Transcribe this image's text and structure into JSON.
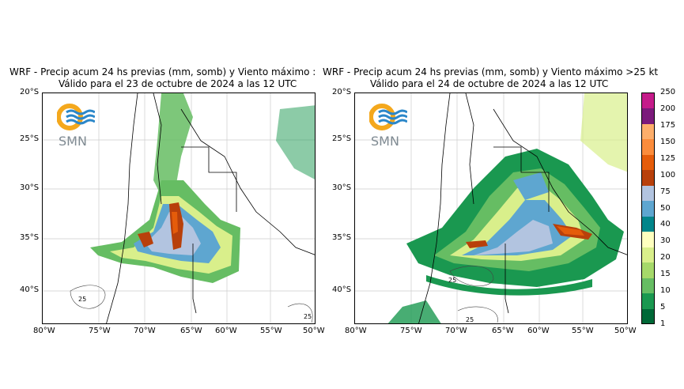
{
  "left_panel": {
    "title_line1": "WRF - Precip acum 24 hs previas (mm, somb) y Viento máximo :",
    "title_line2": "Válido para el 23 de octubre de 2024 a las 12 UTC"
  },
  "right_panel": {
    "title_line1": "WRF - Precip acum 24 hs previas (mm, somb) y Viento máximo >25 kt",
    "title_line2": "Válido para el 24 de octubre de 2024 a las 12 UTC"
  },
  "logo": {
    "text": "SMN"
  },
  "lat_ticks": [
    "20°S",
    "25°S",
    "30°S",
    "35°S",
    "40°S"
  ],
  "lon_ticks": [
    "80°W",
    "75°W",
    "70°W",
    "65°W",
    "60°W",
    "55°W",
    "50°W"
  ],
  "contour_labels": {
    "left_a": "25",
    "left_b": "25",
    "right_a": "25",
    "right_b": "25"
  },
  "colorbar": {
    "levels": [
      "1",
      "5",
      "10",
      "15",
      "20",
      "30",
      "40",
      "50",
      "75",
      "100",
      "125",
      "150",
      "175",
      "200",
      "250"
    ],
    "colors": [
      "#006837",
      "#1a9850",
      "#66bd63",
      "#a6d96a",
      "#d9ef8b",
      "#ffffbf",
      "#01858a",
      "#5ea6d0",
      "#b2c4e0",
      "#b8400b",
      "#e55c0a",
      "#fb8c3c",
      "#fdae6b",
      "#7b1a7b",
      "#c51b8a"
    ]
  },
  "colors": {
    "logo_orange": "#f4a81d",
    "logo_blue": "#2b87c9",
    "logo_text": "#7f8a92"
  }
}
